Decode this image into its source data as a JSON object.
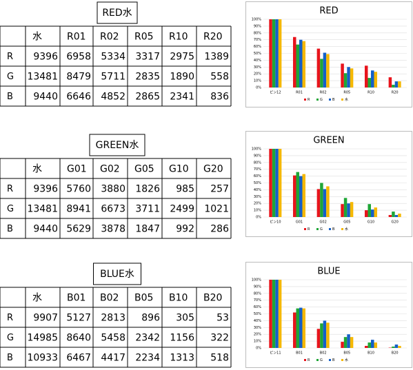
{
  "sections": [
    {
      "title": "RED水",
      "table": {
        "columns": [
          "水",
          "R01",
          "R02",
          "R05",
          "R10",
          "R20"
        ],
        "rows": [
          {
            "label": "R",
            "values": [
              9396,
              6958,
              5334,
              3317,
              2975,
              1389
            ]
          },
          {
            "label": "G",
            "values": [
              13481,
              8479,
              5711,
              2835,
              1890,
              558
            ]
          },
          {
            "label": "B",
            "values": [
              9440,
              6646,
              4852,
              2865,
              2341,
              836
            ]
          }
        ]
      }
    },
    {
      "title": "GREEN水",
      "table": {
        "columns": [
          "水",
          "G01",
          "G02",
          "G05",
          "G10",
          "G20"
        ],
        "rows": [
          {
            "label": "R",
            "values": [
              9396,
              5760,
              3880,
              1826,
              985,
              257
            ]
          },
          {
            "label": "G",
            "values": [
              13481,
              8941,
              6673,
              3711,
              2499,
              1021
            ]
          },
          {
            "label": "B",
            "values": [
              9440,
              5629,
              3878,
              1847,
              992,
              286
            ]
          }
        ]
      }
    },
    {
      "title": "BLUE水",
      "table": {
        "columns": [
          "水",
          "B01",
          "B02",
          "B05",
          "B10",
          "B20"
        ],
        "rows": [
          {
            "label": "R",
            "values": [
              9907,
              5127,
              2813,
              896,
              305,
              53
            ]
          },
          {
            "label": "G",
            "values": [
              14985,
              8640,
              5458,
              2342,
              1156,
              322
            ]
          },
          {
            "label": "B",
            "values": [
              10933,
              6467,
              4417,
              2234,
              1313,
              518
            ]
          }
        ]
      }
    }
  ],
  "chart_data": [
    {
      "type": "bar",
      "title": "RED",
      "categories": [
        "ピン12",
        "R01",
        "R02",
        "R05",
        "R10",
        "R20"
      ],
      "series": [
        {
          "name": "R",
          "color": "#e8141c",
          "values": [
            100,
            74,
            57,
            35,
            32,
            15
          ]
        },
        {
          "name": "G",
          "color": "#1fa637",
          "values": [
            100,
            63,
            42,
            21,
            14,
            4
          ]
        },
        {
          "name": "B",
          "color": "#1560c8",
          "values": [
            100,
            70,
            51,
            30,
            25,
            9
          ]
        },
        {
          "name": "水",
          "color": "#f5b800",
          "values": [
            100,
            68,
            49,
            28,
            23,
            9
          ]
        }
      ],
      "ylim": [
        0,
        100
      ],
      "yticks": [
        {
          "value": 0,
          "label": "0%"
        },
        {
          "value": 10,
          "label": "10%"
        },
        {
          "value": 20,
          "label": "20%"
        },
        {
          "value": 30,
          "label": "30%"
        },
        {
          "value": 40,
          "label": "40%"
        },
        {
          "value": 50,
          "label": "50%"
        },
        {
          "value": 60,
          "label": "60%"
        },
        {
          "value": 70,
          "label": "70%"
        },
        {
          "value": 80,
          "label": "80%"
        },
        {
          "value": 90,
          "label": "90%"
        },
        {
          "value": 100,
          "label": "100%"
        }
      ],
      "grid": true
    },
    {
      "type": "bar",
      "title": "GREEN",
      "categories": [
        "ピン10",
        "G01",
        "G02",
        "G05",
        "G10",
        "G20"
      ],
      "series": [
        {
          "name": "R",
          "color": "#e8141c",
          "values": [
            100,
            61,
            41,
            19,
            10,
            3
          ]
        },
        {
          "name": "G",
          "color": "#1fa637",
          "values": [
            100,
            66,
            50,
            28,
            19,
            8
          ]
        },
        {
          "name": "B",
          "color": "#1560c8",
          "values": [
            100,
            60,
            41,
            20,
            11,
            3
          ]
        },
        {
          "name": "水",
          "color": "#f5b800",
          "values": [
            100,
            63,
            45,
            22,
            14,
            5
          ]
        }
      ],
      "ylim": [
        0,
        100
      ],
      "yticks": [
        {
          "value": 0,
          "label": "0%"
        },
        {
          "value": 10,
          "label": "10%"
        },
        {
          "value": 20,
          "label": "20%"
        },
        {
          "value": 30,
          "label": "30%"
        },
        {
          "value": 40,
          "label": "40%"
        },
        {
          "value": 50,
          "label": "50%"
        },
        {
          "value": 60,
          "label": "60%"
        },
        {
          "value": 70,
          "label": "70%"
        },
        {
          "value": 80,
          "label": "80%"
        },
        {
          "value": 90,
          "label": "90%"
        },
        {
          "value": 100,
          "label": "100%"
        }
      ],
      "grid": true
    },
    {
      "type": "bar",
      "title": "BLUE",
      "categories": [
        "ピン11",
        "B01",
        "B02",
        "B05",
        "B10",
        "B20"
      ],
      "series": [
        {
          "name": "R",
          "color": "#e8141c",
          "values": [
            100,
            52,
            28,
            9,
            3,
            0.5
          ]
        },
        {
          "name": "G",
          "color": "#1fa637",
          "values": [
            100,
            58,
            36,
            16,
            8,
            2
          ]
        },
        {
          "name": "B",
          "color": "#1560c8",
          "values": [
            100,
            59,
            40,
            20,
            12,
            5
          ]
        },
        {
          "name": "水",
          "color": "#f5b800",
          "values": [
            100,
            58,
            37,
            16,
            8,
            3
          ]
        }
      ],
      "ylim": [
        0,
        100
      ],
      "yticks": [
        {
          "value": 0,
          "label": "0%"
        },
        {
          "value": 10,
          "label": "10%"
        },
        {
          "value": 20,
          "label": "20%"
        },
        {
          "value": 30,
          "label": "30%"
        },
        {
          "value": 40,
          "label": "40%"
        },
        {
          "value": 50,
          "label": "50%"
        },
        {
          "value": 60,
          "label": "60%"
        },
        {
          "value": 70,
          "label": "70%"
        },
        {
          "value": 80,
          "label": "80%"
        },
        {
          "value": 90,
          "label": "90%"
        },
        {
          "value": 100,
          "label": "100%"
        }
      ],
      "grid": true
    }
  ]
}
